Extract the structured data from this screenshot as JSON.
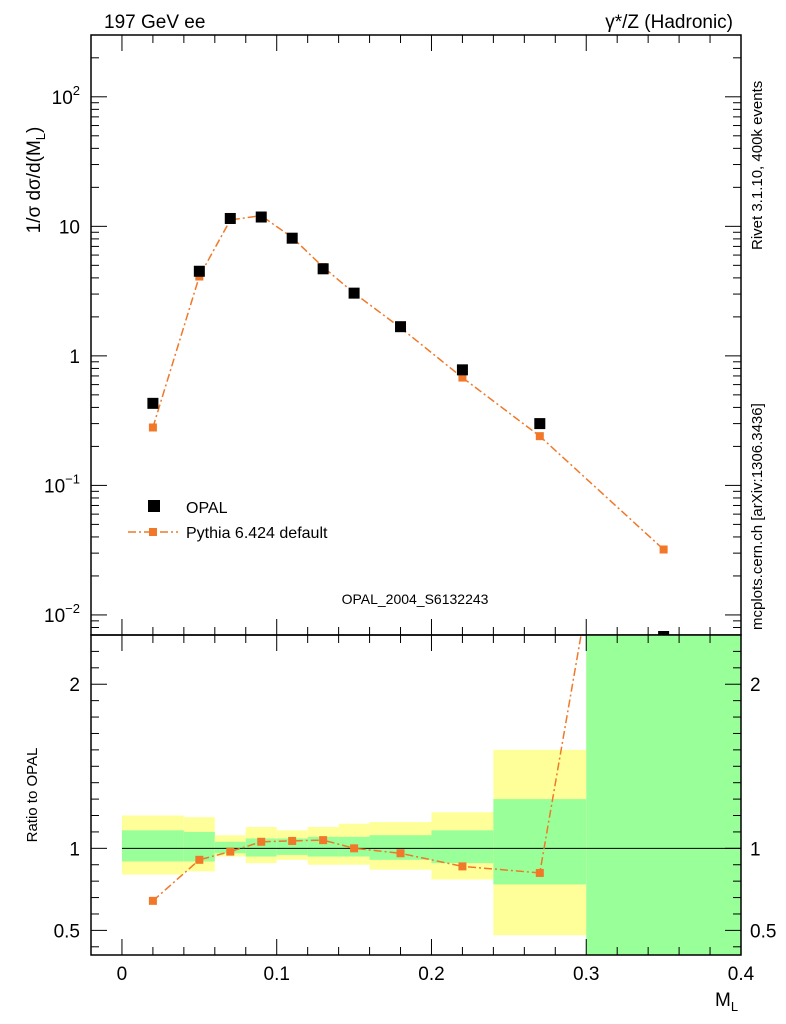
{
  "chart_data": {
    "type": "scatter",
    "energy_label": "197 GeV ee",
    "process_label": "γ*/Z (Hadronic)",
    "analysis_id": "OPAL_2004_S6132243",
    "side_label_top": "Rivet 3.1.10,  400k events",
    "side_label_bottom": "mcplots.cern.ch [arXiv:1306.3436]",
    "xlabel": "M",
    "xlabel_sub": "L",
    "ylabel": "1/σ dσ/d(M",
    "ylabel_sub": "L",
    "ylabel_close": ")",
    "ratio_ylabel": "Ratio to OPAL",
    "xlim": [
      -0.02,
      0.4
    ],
    "ylim_main": [
      0.007,
      300
    ],
    "ylim_ratio": [
      0.35,
      2.3
    ],
    "x_ticks": [
      "0",
      "0.1",
      "0.2",
      "0.3",
      "0.4"
    ],
    "x_tick_values": [
      0,
      0.1,
      0.2,
      0.3,
      0.4
    ],
    "y_ticks_main": [
      {
        "value": 100,
        "base": "10",
        "exp": "2"
      },
      {
        "value": 10,
        "base": "10",
        "exp": ""
      },
      {
        "value": 1,
        "base": "1",
        "exp": ""
      },
      {
        "value": 0.1,
        "base": "10",
        "exp": "−1"
      },
      {
        "value": 0.01,
        "base": "10",
        "exp": "−2"
      }
    ],
    "y_ticks_ratio": [
      "0.5",
      "1",
      "2"
    ],
    "y_tick_values_ratio": [
      0.5,
      1,
      2
    ],
    "legend": {
      "data_label": "OPAL",
      "mc_label": "Pythia 6.424 default"
    },
    "bins": [
      {
        "lo": 0.0,
        "hi": 0.04
      },
      {
        "lo": 0.04,
        "hi": 0.06
      },
      {
        "lo": 0.06,
        "hi": 0.08
      },
      {
        "lo": 0.08,
        "hi": 0.1
      },
      {
        "lo": 0.1,
        "hi": 0.12
      },
      {
        "lo": 0.12,
        "hi": 0.14
      },
      {
        "lo": 0.14,
        "hi": 0.16
      },
      {
        "lo": 0.16,
        "hi": 0.2
      },
      {
        "lo": 0.2,
        "hi": 0.24
      },
      {
        "lo": 0.24,
        "hi": 0.3
      },
      {
        "lo": 0.3,
        "hi": 0.4
      }
    ],
    "series": [
      {
        "name": "OPAL",
        "x": [
          0.02,
          0.05,
          0.07,
          0.09,
          0.11,
          0.13,
          0.15,
          0.18,
          0.22,
          0.27,
          0.35
        ],
        "y": [
          0.43,
          4.5,
          11.5,
          11.8,
          8.1,
          4.7,
          3.05,
          1.68,
          0.78,
          0.3,
          0.0062
        ]
      },
      {
        "name": "Pythia 6.424 default",
        "x": [
          0.02,
          0.05,
          0.07,
          0.09,
          0.11,
          0.13,
          0.15,
          0.18,
          0.22,
          0.27,
          0.35
        ],
        "y": [
          0.28,
          4.1,
          11.2,
          12.1,
          8.2,
          4.85,
          3.05,
          1.65,
          0.68,
          0.24,
          0.032
        ]
      }
    ],
    "ratio": {
      "mc": [
        0.68,
        0.93,
        0.98,
        1.04,
        1.045,
        1.05,
        1.0,
        0.97,
        0.89,
        0.85,
        5.2
      ],
      "yellow_band": [
        [
          0.84,
          1.2
        ],
        [
          0.86,
          1.19
        ],
        [
          0.95,
          1.08
        ],
        [
          0.91,
          1.13
        ],
        [
          0.93,
          1.11
        ],
        [
          0.9,
          1.13
        ],
        [
          0.9,
          1.15
        ],
        [
          0.87,
          1.16
        ],
        [
          0.81,
          1.22
        ],
        [
          0.47,
          1.6
        ],
        [
          0.35,
          2.3
        ]
      ],
      "green_band": [
        [
          0.92,
          1.11
        ],
        [
          0.92,
          1.1
        ],
        [
          0.97,
          1.04
        ],
        [
          0.95,
          1.06
        ],
        [
          0.96,
          1.06
        ],
        [
          0.95,
          1.07
        ],
        [
          0.95,
          1.07
        ],
        [
          0.93,
          1.08
        ],
        [
          0.91,
          1.11
        ],
        [
          0.78,
          1.3
        ],
        [
          0.35,
          2.3
        ]
      ]
    },
    "colors": {
      "data": "#000000",
      "mc": "#f07828",
      "band_yellow": "#ffff99",
      "band_green": "#99ff99",
      "grey_text": "#888888"
    }
  }
}
